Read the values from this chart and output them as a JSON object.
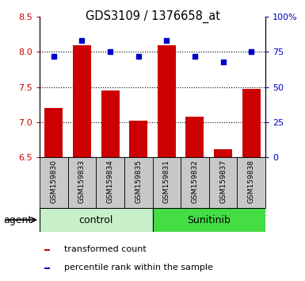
{
  "title": "GDS3109 / 1376658_at",
  "samples": [
    "GSM159830",
    "GSM159833",
    "GSM159834",
    "GSM159835",
    "GSM159831",
    "GSM159832",
    "GSM159837",
    "GSM159838"
  ],
  "bar_values": [
    7.2,
    8.1,
    7.45,
    7.02,
    8.1,
    7.08,
    6.62,
    7.48
  ],
  "dot_values": [
    72,
    83,
    75,
    72,
    83,
    72,
    68,
    75
  ],
  "ylim_left": [
    6.5,
    8.5
  ],
  "ylim_right": [
    0,
    100
  ],
  "yticks_left": [
    6.5,
    7.0,
    7.5,
    8.0,
    8.5
  ],
  "yticks_right": [
    0,
    25,
    50,
    75,
    100
  ],
  "ytick_labels_right": [
    "0",
    "25",
    "50",
    "75",
    "100%"
  ],
  "grid_lines": [
    7.0,
    7.5,
    8.0
  ],
  "bar_color": "#CC0000",
  "dot_color": "#0000CC",
  "bar_bottom": 6.5,
  "groups": [
    {
      "label": "control",
      "span": [
        0,
        4
      ],
      "color": "#c8f0c8"
    },
    {
      "label": "Sunitinib",
      "span": [
        4,
        8
      ],
      "color": "#44dd44"
    }
  ],
  "group_label": "agent",
  "legend_bar_label": "transformed count",
  "legend_dot_label": "percentile rank within the sample",
  "tick_label_color_left": "#CC0000",
  "tick_label_color_right": "#0000CC",
  "label_bg_color": "#c8c8c8",
  "n_samples": 8
}
